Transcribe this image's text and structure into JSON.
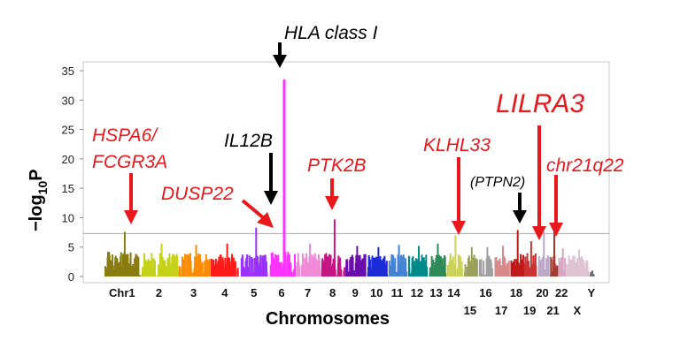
{
  "chart_data": {
    "type": "scatter",
    "subtype": "manhattan",
    "ylabel": {
      "main": "−log",
      "sub": "10",
      "tail": "P"
    },
    "xlabel": "Chromosomes",
    "ylim": [
      0,
      36
    ],
    "yticks": [
      0,
      5,
      10,
      15,
      20,
      25,
      30,
      35
    ],
    "threshold": 7.3,
    "chromosomes": [
      {
        "label": "Chr1",
        "color": "#8a7d10",
        "base": 4.2,
        "peak": 7.6
      },
      {
        "label": "2",
        "color": "#c5d21a",
        "base": 4.0,
        "peak": 5.6
      },
      {
        "label": "3",
        "color": "#ff8c00",
        "base": 4.0,
        "peak": 5.4
      },
      {
        "label": "4",
        "color": "#ff1a1a",
        "base": 4.0,
        "peak": 5.6
      },
      {
        "label": "5",
        "color": "#9b30ff",
        "base": 4.0,
        "peak": 8.3
      },
      {
        "label": "6",
        "color": "#ff33ff",
        "base": 4.2,
        "peak": 33.5
      },
      {
        "label": "7",
        "color": "#f08ad6",
        "base": 4.0,
        "peak": 5.6
      },
      {
        "label": "8",
        "color": "#c71585",
        "base": 4.0,
        "peak": 9.7
      },
      {
        "label": "9",
        "color": "#6a0dad",
        "base": 3.8,
        "peak": 5.2
      },
      {
        "label": "10",
        "color": "#1c2bd6",
        "base": 3.8,
        "peak": 5.0
      },
      {
        "label": "11",
        "color": "#4682d4",
        "base": 3.8,
        "peak": 5.4
      },
      {
        "label": "12",
        "color": "#008b8b",
        "base": 3.8,
        "peak": 5.2
      },
      {
        "label": "13",
        "color": "#2e8b57",
        "base": 4.0,
        "peak": 5.6
      },
      {
        "label": "14",
        "color": "#ccd35a",
        "base": 4.0,
        "peak": 7.0
      },
      {
        "label": "15",
        "color": "#9aa05a",
        "base": 3.8,
        "peak": 5.0
      },
      {
        "label": "16",
        "color": "#a0a0a0",
        "base": 3.8,
        "peak": 5.0
      },
      {
        "label": "17",
        "color": "#d88a8a",
        "base": 3.8,
        "peak": 5.2
      },
      {
        "label": "18",
        "color": "#c01818",
        "base": 4.0,
        "peak": 7.9
      },
      {
        "label": "19",
        "color": "#cc3333",
        "base": 4.0,
        "peak": 6.0
      },
      {
        "label": "20",
        "color": "#bca9c8",
        "base": 3.6,
        "peak": 7.6
      },
      {
        "label": "21",
        "color": "#a33c2e",
        "base": 3.6,
        "peak": 7.7
      },
      {
        "label": "22",
        "color": "#d7a8c4",
        "base": 3.6,
        "peak": 4.8
      },
      {
        "label": "X",
        "color": "#e0c3d0",
        "base": 3.6,
        "peak": 4.6
      },
      {
        "label": "Y",
        "color": "#707070",
        "base": 0.8,
        "peak": 1.0
      }
    ],
    "axis_labels_row1": [
      "Chr1",
      "2",
      "3",
      "4",
      "5",
      "6",
      "7",
      "8",
      "9",
      "10",
      "11",
      "12",
      "13",
      "14",
      "16",
      "18",
      "20",
      "22",
      "Y"
    ],
    "axis_labels_row2": [
      "15",
      "17",
      "19",
      "21",
      "X"
    ],
    "annotations": [
      {
        "text": "HLA class I",
        "color": "#000000",
        "chromosome": "6"
      },
      {
        "text": "HSPA6/",
        "color": "#e8181d",
        "chromosome": "Chr1"
      },
      {
        "text": "FCGR3A",
        "color": "#e8181d",
        "chromosome": "Chr1"
      },
      {
        "text": "IL12B",
        "color": "#000000",
        "chromosome": "5"
      },
      {
        "text": "DUSP22",
        "color": "#e8181d",
        "chromosome": "6"
      },
      {
        "text": "PTK2B",
        "color": "#e8181d",
        "chromosome": "8"
      },
      {
        "text": "KLHL33",
        "color": "#e8181d",
        "chromosome": "14"
      },
      {
        "text": "(PTPN2)",
        "color": "#000000",
        "chromosome": "18"
      },
      {
        "text": "LILRA3",
        "color": "#e8181d",
        "chromosome": "19"
      },
      {
        "text": "chr21q22",
        "color": "#e8181d",
        "chromosome": "21"
      }
    ]
  }
}
